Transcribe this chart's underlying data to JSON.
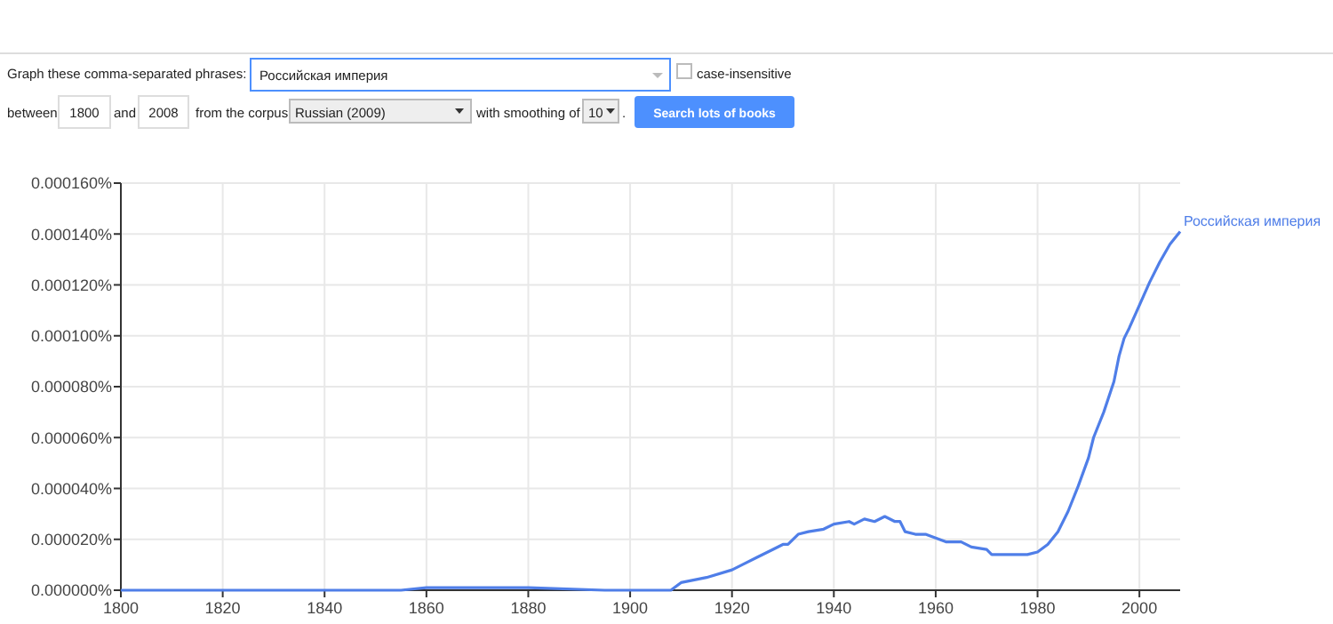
{
  "chart_data": {
    "type": "line",
    "annotations": [
      "Graph these comma-separated phrases:",
      "Российская империя",
      "case-insensitive",
      "between",
      "1800",
      "and",
      "2008",
      "from the corpus",
      "Russian (2009)",
      "with smoothing of",
      "10",
      ".",
      "Search lots of books"
    ],
    "x": [
      1800,
      1830,
      1855,
      1860,
      1875,
      1880,
      1895,
      1908,
      1910,
      1915,
      1920,
      1922,
      1925,
      1928,
      1930,
      1931,
      1933,
      1935,
      1938,
      1940,
      1943,
      1944,
      1946,
      1948,
      1950,
      1952,
      1953,
      1954,
      1956,
      1958,
      1962,
      1965,
      1967,
      1970,
      1971,
      1975,
      1978,
      1980,
      1982,
      1984,
      1986,
      1988,
      1990,
      1991,
      1993,
      1995,
      1996,
      1997,
      1998,
      2000,
      2002,
      2004,
      2006,
      2008
    ],
    "series": [
      {
        "name": "Российская империя",
        "color": "#4f7ee8",
        "values": [
          0,
          0,
          0,
          1e-06,
          1e-06,
          1e-06,
          0,
          0,
          3e-06,
          5e-06,
          8e-06,
          1e-05,
          1.3e-05,
          1.6e-05,
          1.8e-05,
          1.8e-05,
          2.2e-05,
          2.3e-05,
          2.4e-05,
          2.6e-05,
          2.7e-05,
          2.6e-05,
          2.8e-05,
          2.7e-05,
          2.9e-05,
          2.7e-05,
          2.7e-05,
          2.3e-05,
          2.2e-05,
          2.2e-05,
          1.9e-05,
          1.9e-05,
          1.7e-05,
          1.6e-05,
          1.4e-05,
          1.4e-05,
          1.4e-05,
          1.5e-05,
          1.8e-05,
          2.3e-05,
          3.1e-05,
          4.1e-05,
          5.2e-05,
          6e-05,
          7e-05,
          8.2e-05,
          9.2e-05,
          9.9e-05,
          0.000103,
          0.000112,
          0.000121,
          0.000129,
          0.000136,
          0.000141
        ]
      }
    ],
    "xlim": [
      1800,
      2008
    ],
    "xticks": [
      1800,
      1820,
      1840,
      1860,
      1880,
      1900,
      1920,
      1940,
      1960,
      1980,
      2000
    ],
    "ylim": [
      0,
      0.00016
    ],
    "yticks": [
      {
        "value": 0,
        "label": "0.000000%"
      },
      {
        "value": 2e-05,
        "label": "0.000020%"
      },
      {
        "value": 4e-05,
        "label": "0.000040%"
      },
      {
        "value": 6e-05,
        "label": "0.000060%"
      },
      {
        "value": 8e-05,
        "label": "0.000080%"
      },
      {
        "value": 0.0001,
        "label": "0.000100%"
      },
      {
        "value": 0.00012,
        "label": "0.000120%"
      },
      {
        "value": 0.00014,
        "label": "0.000140%"
      },
      {
        "value": 0.00016,
        "label": "0.000160%"
      }
    ],
    "grid": true,
    "marker": "none",
    "line_style": "solid"
  }
}
